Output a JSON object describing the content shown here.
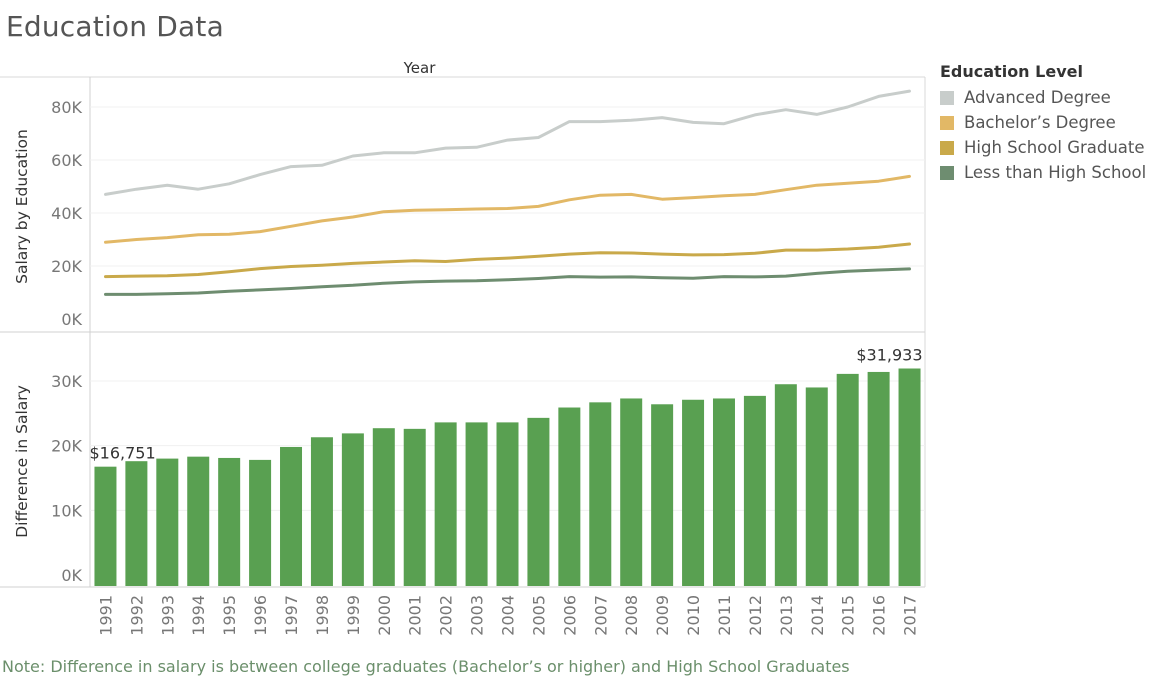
{
  "title": "Education Data",
  "note": "Note: Difference in salary is between college graduates (Bachelor’s or higher) and High School Graduates",
  "legend": {
    "title": "Education Level",
    "items": [
      {
        "label": "Advanced Degree",
        "color": "#c8cdcb"
      },
      {
        "label": "Bachelor’s Degree",
        "color": "#e2b866"
      },
      {
        "label": "High School Graduate",
        "color": "#c9a94a"
      },
      {
        "label": "Less than High School",
        "color": "#6e8d70"
      }
    ]
  },
  "chart_data": [
    {
      "type": "line",
      "header": "Year",
      "ylabel": "Salary by Education",
      "ylim": [
        0,
        90000
      ],
      "yticks": [
        {
          "value": 0,
          "label": "0K"
        },
        {
          "value": 20000,
          "label": "20K"
        },
        {
          "value": 40000,
          "label": "40K"
        },
        {
          "value": 60000,
          "label": "60K"
        },
        {
          "value": 80000,
          "label": "80K"
        }
      ],
      "x": [
        "1991",
        "1992",
        "1993",
        "1994",
        "1995",
        "1996",
        "1997",
        "1998",
        "1999",
        "2000",
        "2001",
        "2002",
        "2003",
        "2004",
        "2005",
        "2006",
        "2007",
        "2008",
        "2009",
        "2010",
        "2011",
        "2012",
        "2013",
        "2014",
        "2015",
        "2016",
        "2017"
      ],
      "series": [
        {
          "name": "Advanced Degree",
          "color": "#c8cdcb",
          "values": [
            47000,
            49000,
            50500,
            49000,
            51000,
            54500,
            57500,
            58000,
            61500,
            62700,
            62700,
            64500,
            64800,
            67500,
            68500,
            74500,
            74500,
            75000,
            76000,
            74200,
            73700,
            77000,
            79000,
            77200,
            80000,
            84000,
            86000
          ]
        },
        {
          "name": "Bachelor’s Degree",
          "color": "#e2b866",
          "values": [
            29000,
            30000,
            30700,
            31800,
            32000,
            33000,
            35000,
            37000,
            38500,
            40500,
            41000,
            41200,
            41500,
            41700,
            42500,
            45000,
            46700,
            47000,
            45200,
            45800,
            46500,
            47000,
            48800,
            50500,
            51200,
            52000,
            53800
          ]
        },
        {
          "name": "High School Graduate",
          "color": "#c9a94a",
          "values": [
            16000,
            16200,
            16300,
            16800,
            17800,
            19000,
            19800,
            20300,
            21000,
            21500,
            22000,
            21700,
            22500,
            23000,
            23700,
            24500,
            25000,
            24900,
            24500,
            24200,
            24300,
            24800,
            26000,
            26000,
            26400,
            27100,
            28300
          ]
        },
        {
          "name": "Less than High School",
          "color": "#6e8d70",
          "values": [
            9300,
            9300,
            9500,
            9800,
            10500,
            11000,
            11500,
            12200,
            12700,
            13500,
            14000,
            14300,
            14400,
            14800,
            15300,
            16000,
            15800,
            15900,
            15600,
            15400,
            16000,
            15900,
            16200,
            17200,
            18000,
            18500,
            18900
          ]
        }
      ]
    },
    {
      "type": "bar",
      "ylabel": "Difference in Salary",
      "ylim": [
        0,
        35000
      ],
      "yticks": [
        {
          "value": 0,
          "label": "0K"
        },
        {
          "value": 10000,
          "label": "10K"
        },
        {
          "value": 20000,
          "label": "20K"
        },
        {
          "value": 30000,
          "label": "30K"
        }
      ],
      "categories": [
        "1991",
        "1992",
        "1993",
        "1994",
        "1995",
        "1996",
        "1997",
        "1998",
        "1999",
        "2000",
        "2001",
        "2002",
        "2003",
        "2004",
        "2005",
        "2006",
        "2007",
        "2008",
        "2009",
        "2010",
        "2011",
        "2012",
        "2013",
        "2014",
        "2015",
        "2016",
        "2017"
      ],
      "values": [
        16751,
        17600,
        18000,
        18300,
        18100,
        17800,
        19800,
        21300,
        21900,
        22700,
        22600,
        23600,
        23600,
        23600,
        24300,
        25900,
        26700,
        27300,
        26400,
        27100,
        27300,
        27700,
        29500,
        29000,
        31100,
        31400,
        31933
      ],
      "color": "#59a051",
      "data_labels": [
        {
          "category": "1991",
          "label": "$16,751"
        },
        {
          "category": "2017",
          "label": "$31,933"
        }
      ]
    }
  ]
}
